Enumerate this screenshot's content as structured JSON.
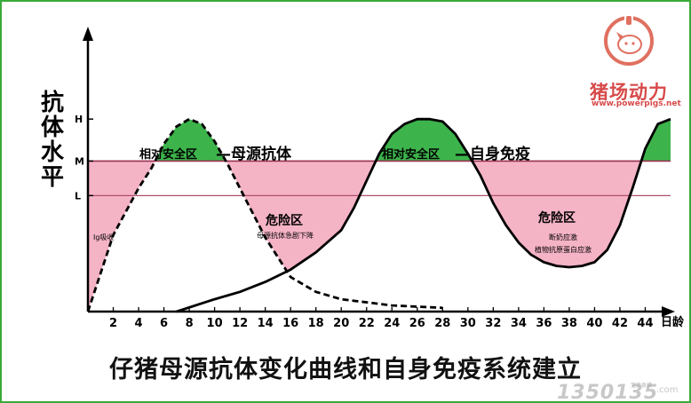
{
  "chart_data": {
    "type": "line",
    "title": "仔猪母源抗体变化曲线和自身免疫系统建立",
    "ylabel_chars": [
      "抗",
      "体",
      "水",
      "平"
    ],
    "xlabel": "日龄",
    "y_ticks": [
      "H",
      "M",
      "L"
    ],
    "x_ticks": [
      2,
      4,
      6,
      8,
      10,
      12,
      14,
      16,
      18,
      20,
      22,
      24,
      26,
      28,
      30,
      32,
      34,
      36,
      38,
      40,
      42,
      44
    ],
    "xlim": [
      0,
      46
    ],
    "thresholds": {
      "H": 0.78,
      "M": 0.61,
      "L": 0.47
    },
    "series": [
      {
        "name": "母源抗体",
        "style": "dashed",
        "x": [
          0,
          2,
          4,
          5,
          6,
          7,
          8,
          9,
          10,
          11,
          12,
          14,
          16,
          18,
          20,
          24,
          28
        ],
        "y": [
          0.0,
          0.31,
          0.5,
          0.58,
          0.68,
          0.75,
          0.78,
          0.76,
          0.69,
          0.6,
          0.5,
          0.3,
          0.14,
          0.08,
          0.05,
          0.025,
          0.015
        ]
      },
      {
        "name": "自身免疫",
        "style": "solid",
        "x": [
          7,
          10,
          12,
          14,
          16,
          18,
          20,
          21,
          22,
          23,
          24,
          25,
          26,
          27,
          28,
          29,
          30,
          31,
          32,
          33,
          34,
          35,
          36,
          37,
          38,
          39,
          40,
          41,
          42,
          43,
          44,
          45,
          46
        ],
        "y": [
          0.0,
          0.05,
          0.08,
          0.12,
          0.17,
          0.24,
          0.33,
          0.42,
          0.53,
          0.64,
          0.72,
          0.76,
          0.78,
          0.78,
          0.77,
          0.72,
          0.64,
          0.55,
          0.44,
          0.35,
          0.28,
          0.23,
          0.2,
          0.185,
          0.18,
          0.185,
          0.2,
          0.25,
          0.35,
          0.5,
          0.66,
          0.76,
          0.78
        ]
      }
    ],
    "annotations": [
      {
        "text": "相对安全区",
        "region": "safe"
      },
      {
        "text": "—母源抗体",
        "kind": "series-label"
      },
      {
        "text": "相对安全区",
        "region": "safe"
      },
      {
        "text": "—自身免疫",
        "kind": "series-label"
      },
      {
        "text": "危险区",
        "region": "danger"
      },
      {
        "text": "母源抗体急剧下降",
        "region": "danger"
      },
      {
        "text": "危险区",
        "region": "danger"
      },
      {
        "text": "断奶应激",
        "region": "danger"
      },
      {
        "text": "植物抗原蛋白应激",
        "region": "danger"
      },
      {
        "text": "Ig吸收",
        "region": "danger"
      }
    ],
    "colors": {
      "safe": "#3cb44b",
      "danger": "#f5b3c6",
      "frame": "#3aa93a"
    },
    "grid": false
  },
  "logo": {
    "text": "猪场动力",
    "url": "www.powerpigs.net",
    "icon": "pig-logo-icon"
  },
  "watermark": {
    "text": "1350135",
    "small": "宝贝食谱",
    "suffix": ".com"
  }
}
